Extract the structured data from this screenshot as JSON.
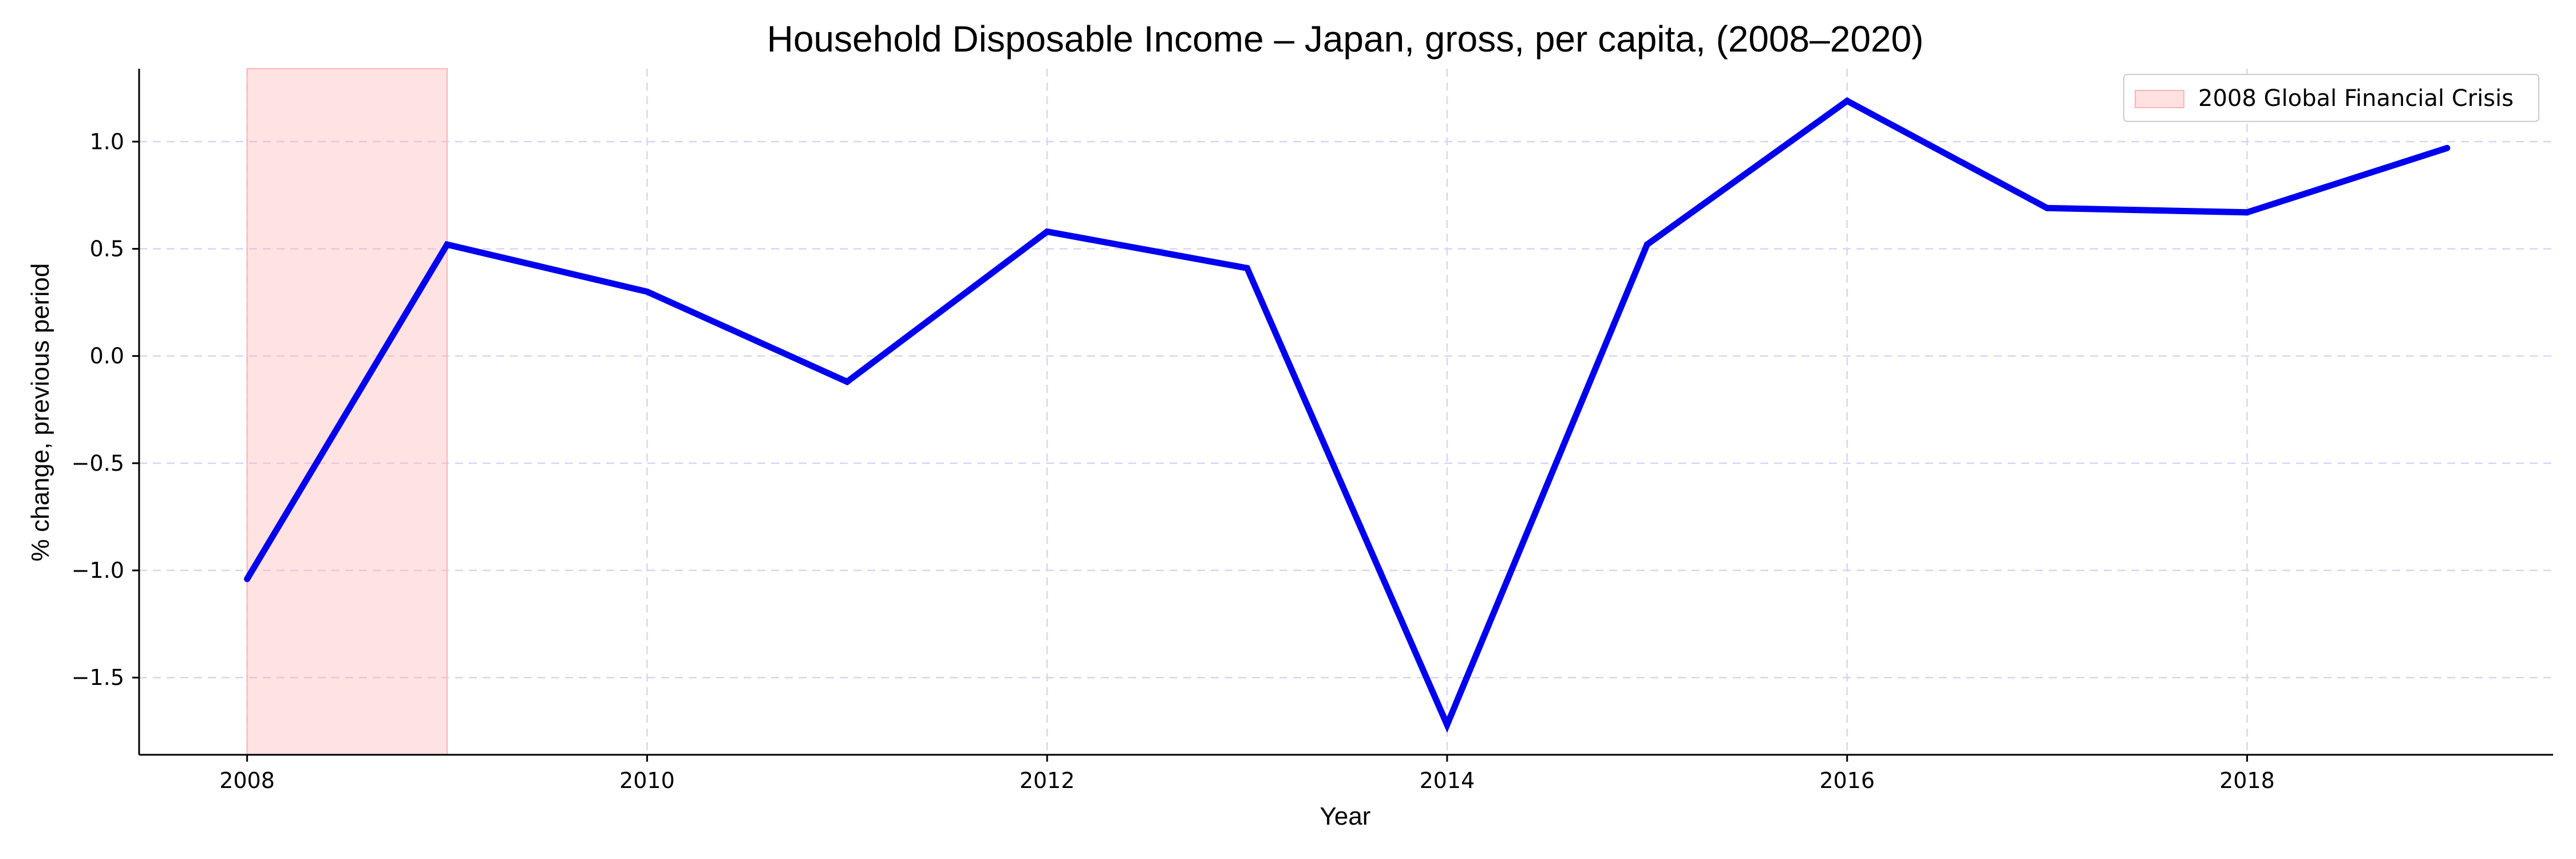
{
  "chart_data": {
    "type": "line",
    "title": "Household Disposable Income – Japan, gross, per capita, (2008–2020)",
    "xlabel": "Year",
    "ylabel": "% change, previous period",
    "xlim": [
      2007.46,
      2019.53
    ],
    "ylim": [
      -1.86,
      1.34
    ],
    "xticks": [
      2008,
      2010,
      2012,
      2014,
      2016,
      2018
    ],
    "yticks": [
      -1.5,
      -1.0,
      -0.5,
      0.0,
      0.5,
      1.0
    ],
    "ytick_labels": [
      "−1.5",
      "−1.0",
      "−0.5",
      "0.0",
      "0.5",
      "1.0"
    ],
    "grid": true,
    "legend_position": "top-right",
    "x": [
      2008,
      2009,
      2010,
      2011,
      2012,
      2013,
      2014,
      2015,
      2016,
      2017,
      2018,
      2019
    ],
    "series": [
      {
        "values": [
          -1.04,
          0.52,
          0.3,
          -0.12,
          0.58,
          0.41,
          -1.72,
          0.52,
          1.19,
          0.69,
          0.67,
          0.97
        ],
        "color": "#0000ee"
      }
    ],
    "shaded_regions": [
      {
        "label": "2008 Global Financial Crisis",
        "x_start": 2008,
        "x_end": 2009,
        "color": "#ffb3b3"
      }
    ]
  }
}
